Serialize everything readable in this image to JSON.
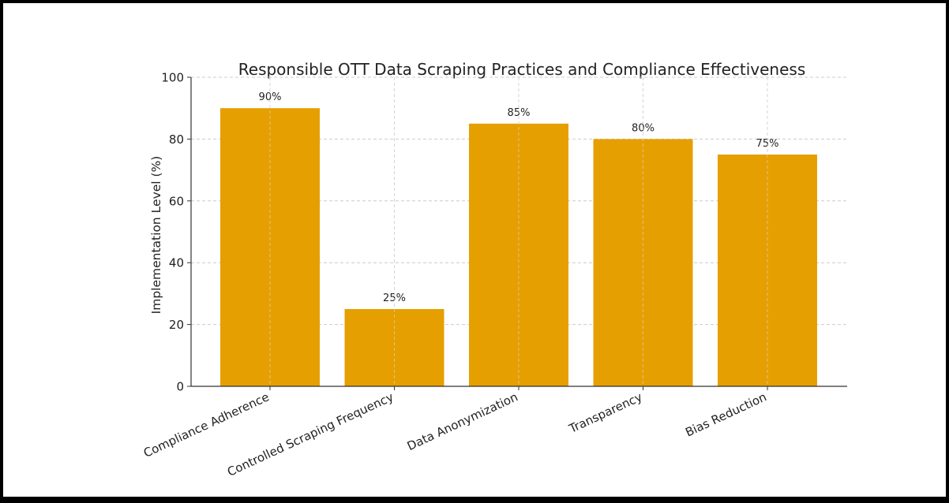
{
  "chart_data": {
    "type": "bar",
    "title": "Responsible OTT Data Scraping Practices and Compliance Effectiveness",
    "xlabel": "",
    "ylabel": "Implementation Level (%)",
    "categories": [
      "Compliance Adherence",
      "Controlled Scraping Frequency",
      "Data Anonymization",
      "Transparency",
      "Bias Reduction"
    ],
    "values": [
      90,
      25,
      85,
      80,
      75
    ],
    "data_labels": [
      "90%",
      "25%",
      "85%",
      "80%",
      "75%"
    ],
    "ylim": [
      0,
      100
    ],
    "yticks": [
      "0",
      "20",
      "40",
      "60",
      "80",
      "100"
    ],
    "grid": true,
    "bar_color": "#E69F00"
  }
}
